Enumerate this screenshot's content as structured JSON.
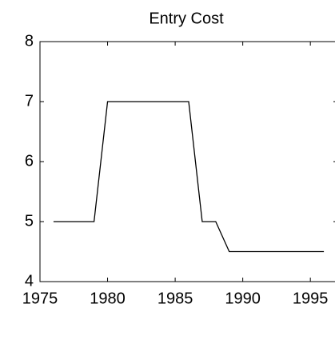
{
  "chart_data": {
    "type": "line",
    "title": "Entry Cost",
    "x": [
      1976,
      1979,
      1980,
      1986,
      1987,
      1988,
      1989,
      1996
    ],
    "series": [
      {
        "color": "#000000",
        "values": [
          5,
          5,
          7,
          7,
          5,
          5,
          4.5,
          4.5
        ]
      }
    ],
    "xlim": [
      1975,
      1997
    ],
    "xticks": [
      1975,
      1980,
      1985,
      1990,
      1995
    ],
    "ylim": [
      4,
      8
    ],
    "yticks": [
      4,
      5,
      6,
      7,
      8
    ]
  }
}
